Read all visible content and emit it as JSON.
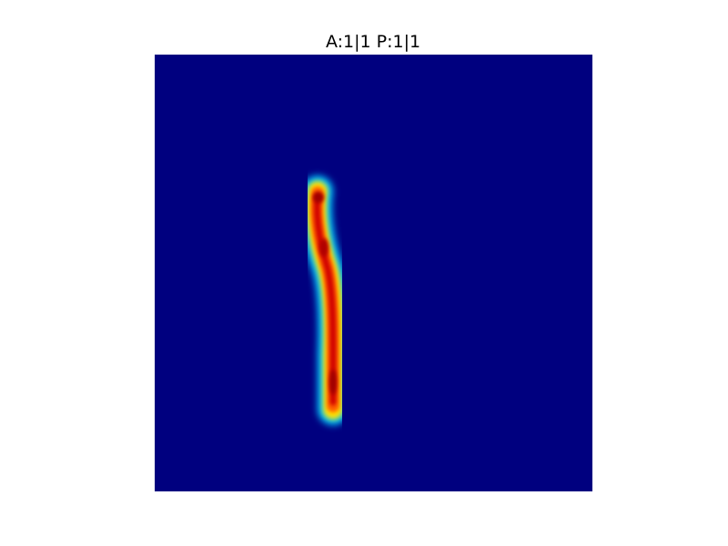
{
  "figure": {
    "title": "A:1|1 P:1|1"
  },
  "image": {
    "description_icon": "heatmap-image",
    "colormap": "jet",
    "colors": {
      "background": "#00007f",
      "cyan": "#00c8ff",
      "yellow": "#ffe000",
      "orange": "#ff6000",
      "red": "#d00000",
      "dark_red": "#a00000"
    }
  }
}
